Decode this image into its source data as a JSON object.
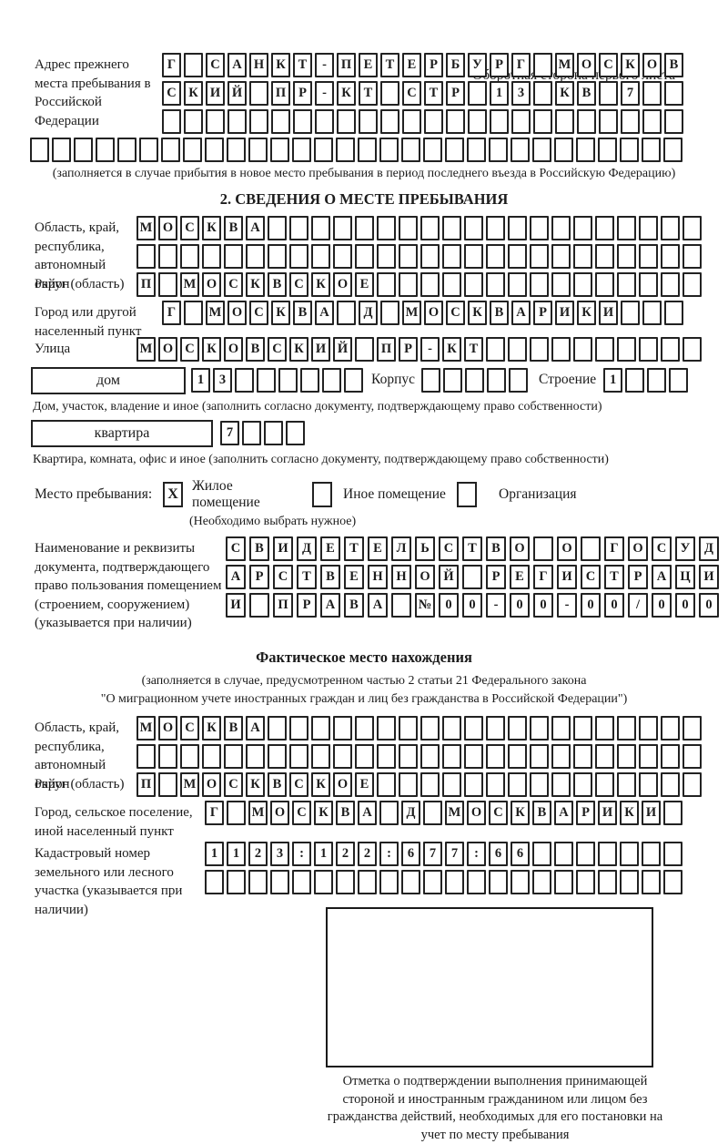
{
  "page": {
    "header_note": "Оборотная сторона первого листа"
  },
  "prev_address": {
    "label": "Адрес прежнего места пребывания в Российской Федерации",
    "row1": {
      "chars": "Г САНКТ-ПЕТЕРБУРГ МОСКОВ",
      "count": 24
    },
    "row2": {
      "chars": "СКИЙ ПР-КТ СТР 13 КВ 7",
      "count": 24
    },
    "row3": {
      "chars": "",
      "count": 24
    },
    "row4": {
      "chars": "",
      "count": 30
    },
    "note": "(заполняется в случае прибытия в новое место пребывания в период последнего въезда в Российскую Федерацию)"
  },
  "section2": {
    "title": "2. СВЕДЕНИЯ О МЕСТЕ ПРЕБЫВАНИЯ",
    "region": {
      "label": "Область, край, республика, автономный округ (область)",
      "row1": {
        "chars": "МОСКВА",
        "count": 26
      },
      "row2": {
        "chars": "",
        "count": 26
      }
    },
    "district": {
      "label": "Район",
      "row": {
        "chars": "П МОСКВСКОЕ",
        "count": 26
      }
    },
    "city": {
      "label": "Город или другой населенный пункт",
      "row": {
        "chars": "Г МОСКВА Д МОСКВАРИКИ",
        "count": 24
      }
    },
    "street": {
      "label": "Улица",
      "row": {
        "chars": "МОСКОВСКИЙ ПР-КТ",
        "count": 26
      }
    },
    "house": {
      "box_label": "дом",
      "house_cells": {
        "chars": "13",
        "count": 8
      },
      "korpus_label": "Корпус",
      "korpus_cells": {
        "chars": "",
        "count": 5
      },
      "stroenie_label": "Строение",
      "stroenie_cells": {
        "chars": "1",
        "count": 4
      },
      "note": "Дом, участок, владение и иное (заполнить согласно документу, подтверждающему право собственности)"
    },
    "apartment": {
      "box_label": "квартира",
      "cells": {
        "chars": "7",
        "count": 4
      },
      "note": "Квартира, комната, офис и иное (заполнить согласно документу, подтверждающему право собственности)"
    },
    "stay_type": {
      "label": "Место пребывания:",
      "options": [
        {
          "mark": "X",
          "label": "Жилое помещение"
        },
        {
          "mark": "",
          "label": "Иное помещение"
        },
        {
          "mark": "",
          "label": "Организация"
        }
      ],
      "note": "(Необходимо выбрать нужное)"
    },
    "document": {
      "label": "Наименование и реквизиты документа, подтверждающего право пользования помещением (строением, сооружением) (указывается при наличии)",
      "row1": {
        "chars": "СВИДЕТЕЛЬСТВО О ГОСУД",
        "count": 21
      },
      "row2": {
        "chars": "АРСТВЕННОЙ РЕГИСТРАЦИ",
        "count": 21
      },
      "row3": {
        "chars": "И ПРАВА №00-00-00/000",
        "count": 21
      }
    }
  },
  "actual_location": {
    "title": "Фактическое место нахождения",
    "note_line1": "(заполняется в случае, предусмотренном частью 2 статьи 21 Федерального закона",
    "note_line2": "\"О миграционном учете иностранных граждан и лиц без гражданства в Российской Федерации\")",
    "region": {
      "label": "Область, край, республика, автономный округ (область)",
      "row1": {
        "chars": "МОСКВА",
        "count": 26
      },
      "row2": {
        "chars": "",
        "count": 26
      }
    },
    "district": {
      "label": "Район",
      "row": {
        "chars": "П МОСКВСКОЕ",
        "count": 26
      }
    },
    "city": {
      "label": "Город, сельское поселение, иной населенный пункт",
      "row": {
        "chars": "Г МОСКВА Д МОСКВАРИКИ",
        "count": 22
      }
    },
    "cadastral": {
      "label": "Кадастровый номер земельного или лесного участка (указывается при наличии)",
      "row1": {
        "chars": "1123:122:677:66",
        "count": 22
      },
      "row2": {
        "chars": "",
        "count": 22
      }
    },
    "stamp_caption": "Отметка о подтверждении выполнения принимающей стороной и иностранным гражданином или лицом без гражданства действий, необходимых для его постановки на учет по месту пребывания"
  }
}
